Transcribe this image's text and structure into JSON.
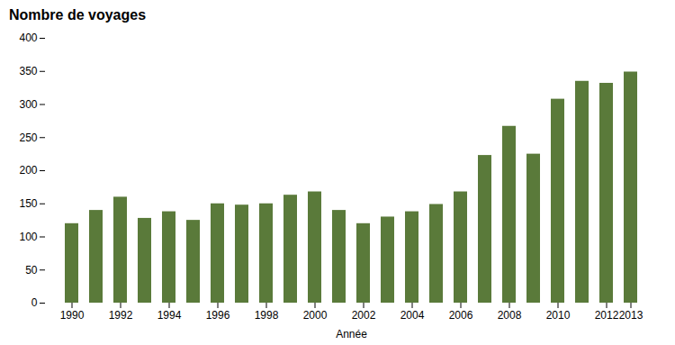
{
  "chart_data": {
    "type": "bar",
    "title": "Nombre de voyages",
    "xlabel": "Année",
    "categories": [
      "1990",
      null,
      "1992",
      null,
      "1994",
      null,
      "1996",
      null,
      "1998",
      null,
      "2000",
      null,
      "2002",
      null,
      "2004",
      null,
      "2006",
      null,
      "2008",
      null,
      "2010",
      null,
      "2012",
      "2013"
    ],
    "values": [
      120,
      140,
      160,
      128,
      138,
      125,
      150,
      148,
      150,
      163,
      168,
      140,
      120,
      130,
      138,
      149,
      168,
      223,
      267,
      225,
      308,
      335,
      332,
      349
    ],
    "color": "#5a7a3a",
    "ylim": [
      0,
      400
    ],
    "yticks": [
      0,
      50,
      100,
      150,
      200,
      250,
      300,
      350,
      400
    ],
    "grid": false
  }
}
